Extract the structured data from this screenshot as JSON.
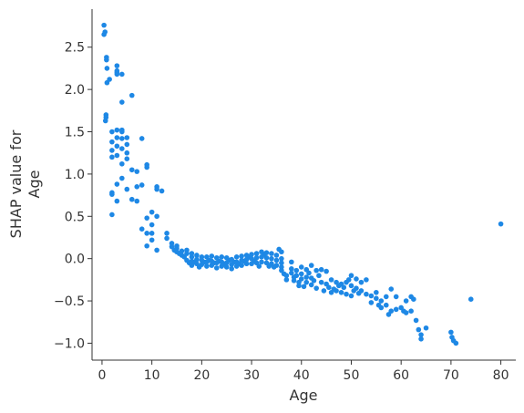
{
  "chart_data": {
    "type": "scatter",
    "title": "",
    "xlabel": "Age",
    "ylabel_lines": [
      "SHAP value for",
      "Age"
    ],
    "xlim": [
      -2,
      83
    ],
    "ylim": [
      -1.2,
      2.95
    ],
    "x_ticks": [
      0,
      10,
      20,
      30,
      40,
      50,
      60,
      70,
      80
    ],
    "y_ticks": [
      -1.0,
      -0.5,
      0.0,
      0.5,
      1.0,
      1.5,
      2.0,
      2.5
    ],
    "x_tick_labels": [
      "0",
      "10",
      "20",
      "30",
      "40",
      "50",
      "60",
      "70",
      "80"
    ],
    "y_tick_labels": [
      "−1.0",
      "−0.5",
      "0.0",
      "0.5",
      "1.0",
      "1.5",
      "2.0",
      "2.5"
    ],
    "point_color": "#1e88e5",
    "grid": false,
    "points": [
      [
        0.4,
        2.76
      ],
      [
        0.4,
        2.65
      ],
      [
        0.6,
        2.68
      ],
      [
        0.9,
        2.38
      ],
      [
        0.9,
        2.35
      ],
      [
        1.0,
        2.25
      ],
      [
        1.0,
        2.08
      ],
      [
        0.8,
        1.7
      ],
      [
        0.8,
        1.67
      ],
      [
        0.7,
        1.63
      ],
      [
        1.5,
        2.12
      ],
      [
        2.0,
        1.5
      ],
      [
        2.0,
        1.38
      ],
      [
        2.0,
        1.28
      ],
      [
        2.0,
        1.2
      ],
      [
        2.0,
        0.78
      ],
      [
        2.0,
        0.76
      ],
      [
        2.0,
        0.52
      ],
      [
        3.0,
        2.28
      ],
      [
        3.0,
        2.22
      ],
      [
        3.0,
        2.18
      ],
      [
        3.0,
        2.2
      ],
      [
        3.0,
        1.52
      ],
      [
        3.0,
        1.43
      ],
      [
        3.0,
        1.33
      ],
      [
        3.0,
        1.22
      ],
      [
        3.0,
        0.88
      ],
      [
        3.0,
        0.68
      ],
      [
        4.0,
        2.18
      ],
      [
        4.0,
        1.85
      ],
      [
        4.0,
        1.52
      ],
      [
        4.0,
        1.5
      ],
      [
        4.0,
        1.42
      ],
      [
        4.0,
        1.3
      ],
      [
        4.0,
        1.12
      ],
      [
        4.0,
        0.95
      ],
      [
        5.0,
        1.43
      ],
      [
        5.0,
        1.35
      ],
      [
        5.0,
        1.25
      ],
      [
        5.0,
        1.18
      ],
      [
        5.0,
        0.82
      ],
      [
        6.0,
        1.93
      ],
      [
        6.0,
        1.05
      ],
      [
        6.0,
        0.7
      ],
      [
        7.0,
        1.03
      ],
      [
        7.0,
        0.85
      ],
      [
        7.0,
        0.68
      ],
      [
        8.0,
        1.42
      ],
      [
        8.0,
        0.87
      ],
      [
        8.0,
        0.35
      ],
      [
        9.0,
        1.11
      ],
      [
        9.0,
        1.08
      ],
      [
        9.0,
        0.48
      ],
      [
        9.0,
        0.3
      ],
      [
        9.0,
        0.15
      ],
      [
        10.0,
        0.55
      ],
      [
        10.0,
        0.4
      ],
      [
        10.0,
        0.3
      ],
      [
        10.0,
        0.22
      ],
      [
        11.0,
        0.85
      ],
      [
        11.0,
        0.82
      ],
      [
        11.0,
        0.5
      ],
      [
        11.0,
        0.1
      ],
      [
        12.0,
        0.8
      ],
      [
        13.0,
        0.3
      ],
      [
        13.0,
        0.24
      ],
      [
        14.0,
        0.18
      ],
      [
        14.0,
        0.14
      ],
      [
        14.5,
        0.1
      ],
      [
        15.0,
        0.15
      ],
      [
        15.0,
        0.12
      ],
      [
        15.0,
        0.08
      ],
      [
        15.5,
        0.06
      ],
      [
        16.0,
        0.09
      ],
      [
        16.0,
        0.04
      ],
      [
        16.5,
        0.02
      ],
      [
        17.0,
        0.1
      ],
      [
        17.0,
        0.06
      ],
      [
        17.0,
        -0.02
      ],
      [
        17.5,
        -0.05
      ],
      [
        18.0,
        0.06
      ],
      [
        18.0,
        0.02
      ],
      [
        18.0,
        -0.03
      ],
      [
        18.0,
        -0.08
      ],
      [
        18.5,
        -0.04
      ],
      [
        19.0,
        0.04
      ],
      [
        19.0,
        -0.01
      ],
      [
        19.0,
        -0.06
      ],
      [
        19.5,
        -0.1
      ],
      [
        20.0,
        0.02
      ],
      [
        20.0,
        -0.02
      ],
      [
        20.0,
        -0.07
      ],
      [
        20.5,
        -0.04
      ],
      [
        21.0,
        0.02
      ],
      [
        21.0,
        -0.04
      ],
      [
        21.0,
        -0.09
      ],
      [
        21.5,
        -0.02
      ],
      [
        22.0,
        0.03
      ],
      [
        22.0,
        -0.03
      ],
      [
        22.0,
        -0.08
      ],
      [
        22.5,
        -0.05
      ],
      [
        23.0,
        0.01
      ],
      [
        23.0,
        -0.05
      ],
      [
        23.0,
        -0.11
      ],
      [
        23.5,
        -0.03
      ],
      [
        24.0,
        0.02
      ],
      [
        24.0,
        -0.04
      ],
      [
        24.0,
        -0.09
      ],
      [
        24.5,
        -0.06
      ],
      [
        25.0,
        0.01
      ],
      [
        25.0,
        -0.05
      ],
      [
        25.0,
        -0.1
      ],
      [
        25.5,
        -0.02
      ],
      [
        26.0,
        -0.01
      ],
      [
        26.0,
        -0.07
      ],
      [
        26.0,
        -0.12
      ],
      [
        26.5,
        -0.04
      ],
      [
        27.0,
        0.02
      ],
      [
        27.0,
        -0.04
      ],
      [
        27.0,
        -0.09
      ],
      [
        27.5,
        -0.06
      ],
      [
        28.0,
        0.03
      ],
      [
        28.0,
        -0.02
      ],
      [
        28.0,
        -0.08
      ],
      [
        28.5,
        -0.03
      ],
      [
        29.0,
        0.04
      ],
      [
        29.0,
        -0.01
      ],
      [
        29.0,
        -0.06
      ],
      [
        29.5,
        0.02
      ],
      [
        30.0,
        0.05
      ],
      [
        30.0,
        0.0
      ],
      [
        30.0,
        -0.06
      ],
      [
        30.5,
        -0.03
      ],
      [
        31.0,
        0.06
      ],
      [
        31.0,
        0.01
      ],
      [
        31.0,
        -0.05
      ],
      [
        31.5,
        -0.09
      ],
      [
        32.0,
        0.08
      ],
      [
        32.0,
        0.02
      ],
      [
        32.0,
        -0.04
      ],
      [
        32.5,
        0.05
      ],
      [
        33.0,
        0.07
      ],
      [
        33.0,
        0.01
      ],
      [
        33.0,
        -0.05
      ],
      [
        33.5,
        -0.09
      ],
      [
        34.0,
        0.06
      ],
      [
        34.0,
        0.0
      ],
      [
        34.0,
        -0.06
      ],
      [
        34.5,
        -0.1
      ],
      [
        35.0,
        0.04
      ],
      [
        35.0,
        -0.02
      ],
      [
        35.0,
        -0.08
      ],
      [
        35.5,
        0.11
      ],
      [
        36.0,
        0.08
      ],
      [
        36.0,
        0.0
      ],
      [
        36.0,
        -0.05
      ],
      [
        36.0,
        -0.1
      ],
      [
        36.0,
        -0.14
      ],
      [
        36.5,
        -0.18
      ],
      [
        37.0,
        -0.2
      ],
      [
        37.0,
        -0.25
      ],
      [
        38.0,
        -0.04
      ],
      [
        38.0,
        -0.12
      ],
      [
        38.0,
        -0.17
      ],
      [
        38.5,
        -0.22
      ],
      [
        38.5,
        -0.26
      ],
      [
        39.0,
        -0.14
      ],
      [
        39.0,
        -0.2
      ],
      [
        39.5,
        -0.28
      ],
      [
        39.5,
        -0.32
      ],
      [
        40.0,
        -0.1
      ],
      [
        40.0,
        -0.18
      ],
      [
        40.0,
        -0.24
      ],
      [
        40.5,
        -0.33
      ],
      [
        41.0,
        -0.13
      ],
      [
        41.0,
        -0.22
      ],
      [
        41.0,
        -0.28
      ],
      [
        41.5,
        -0.17
      ],
      [
        42.0,
        -0.08
      ],
      [
        42.0,
        -0.23
      ],
      [
        42.0,
        -0.31
      ],
      [
        42.5,
        -0.26
      ],
      [
        43.0,
        -0.14
      ],
      [
        43.0,
        -0.35
      ],
      [
        43.5,
        -0.2
      ],
      [
        44.0,
        -0.13
      ],
      [
        44.0,
        -0.28
      ],
      [
        44.5,
        -0.38
      ],
      [
        45.0,
        -0.15
      ],
      [
        45.0,
        -0.3
      ],
      [
        45.5,
        -0.34
      ],
      [
        46.0,
        -0.25
      ],
      [
        46.0,
        -0.4
      ],
      [
        46.5,
        -0.36
      ],
      [
        47.0,
        -0.28
      ],
      [
        47.0,
        -0.38
      ],
      [
        47.5,
        -0.32
      ],
      [
        48.0,
        -0.3
      ],
      [
        48.0,
        -0.4
      ],
      [
        48.5,
        -0.34
      ],
      [
        49.0,
        -0.28
      ],
      [
        49.0,
        -0.42
      ],
      [
        49.5,
        -0.25
      ],
      [
        50.0,
        -0.2
      ],
      [
        50.0,
        -0.32
      ],
      [
        50.0,
        -0.44
      ],
      [
        50.5,
        -0.38
      ],
      [
        51.0,
        -0.24
      ],
      [
        51.0,
        -0.35
      ],
      [
        51.5,
        -0.41
      ],
      [
        52.0,
        -0.28
      ],
      [
        52.0,
        -0.38
      ],
      [
        53.0,
        -0.25
      ],
      [
        53.0,
        -0.42
      ],
      [
        54.0,
        -0.44
      ],
      [
        54.0,
        -0.52
      ],
      [
        55.0,
        -0.4
      ],
      [
        55.0,
        -0.47
      ],
      [
        55.5,
        -0.55
      ],
      [
        56.0,
        -0.5
      ],
      [
        56.0,
        -0.58
      ],
      [
        57.0,
        -0.45
      ],
      [
        57.0,
        -0.55
      ],
      [
        57.5,
        -0.66
      ],
      [
        58.0,
        -0.36
      ],
      [
        58.0,
        -0.62
      ],
      [
        59.0,
        -0.45
      ],
      [
        59.0,
        -0.6
      ],
      [
        60.0,
        -0.58
      ],
      [
        60.5,
        -0.62
      ],
      [
        61.0,
        -0.5
      ],
      [
        61.0,
        -0.64
      ],
      [
        62.0,
        -0.45
      ],
      [
        62.0,
        -0.62
      ],
      [
        62.5,
        -0.48
      ],
      [
        63.0,
        -0.73
      ],
      [
        63.5,
        -0.84
      ],
      [
        64.0,
        -0.9
      ],
      [
        64.0,
        -0.95
      ],
      [
        65.0,
        -0.82
      ],
      [
        70.0,
        -0.87
      ],
      [
        70.2,
        -0.93
      ],
      [
        70.5,
        -0.97
      ],
      [
        71.0,
        -1.0
      ],
      [
        74.0,
        -0.48
      ],
      [
        80.0,
        0.41
      ]
    ]
  }
}
